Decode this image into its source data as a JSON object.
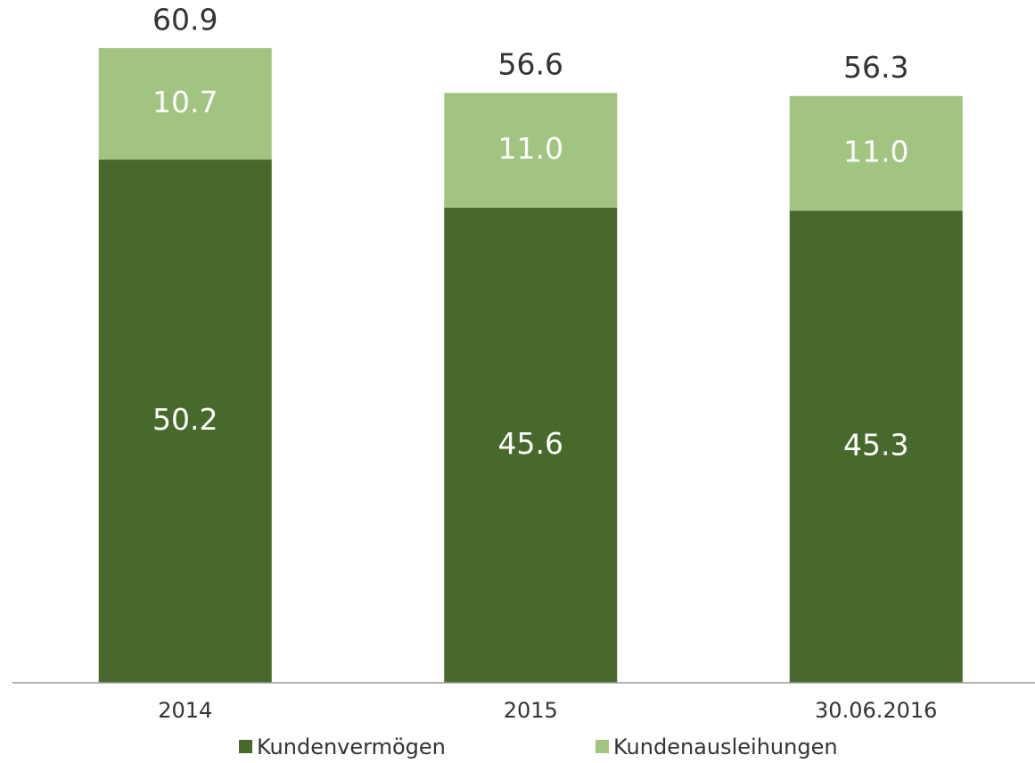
{
  "chart_data": {
    "type": "stacked_bar",
    "categories": [
      "2014",
      "2015",
      "30.06.2016"
    ],
    "series": [
      {
        "name": "Kundenvermögen",
        "color": "#48692c",
        "values": [
          50.2,
          45.6,
          45.3
        ]
      },
      {
        "name": "Kundenausleihungen",
        "color": "#a1c580",
        "values": [
          10.7,
          11.0,
          11.0
        ],
        "value_labels": [
          "10.7",
          "11.0",
          "11.0"
        ]
      }
    ],
    "totals": [
      60.9,
      56.6,
      56.3
    ],
    "ylim": [
      0,
      65
    ]
  }
}
